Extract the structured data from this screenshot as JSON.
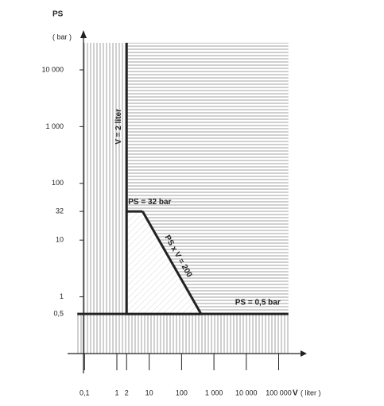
{
  "chart_data": {
    "type": "line",
    "y_label": "PS",
    "y_unit": "( bar )",
    "x_label": "V",
    "x_unit": "( liter )",
    "log_x": true,
    "log_y": true,
    "xlim": [
      0.03,
      400000
    ],
    "ylim": [
      0.1,
      40000
    ],
    "xticks": [
      {
        "value": 0.1,
        "label": "0,1"
      },
      1,
      2,
      10,
      100,
      {
        "value": 1000,
        "label": "1 000"
      },
      {
        "value": 10000,
        "label": "10 000"
      },
      {
        "value": 100000,
        "label": "100 000"
      }
    ],
    "yticks": [
      {
        "value": 0.5,
        "label": "0,5"
      },
      1,
      10,
      32,
      100,
      {
        "value": 1000,
        "label": "1 000"
      },
      {
        "value": 10000,
        "label": "10 000"
      }
    ],
    "series": [
      {
        "name": "V = 2 liter",
        "color": "#222222",
        "x": [
          2,
          2
        ],
        "values": [
          0.5,
          30000
        ]
      },
      {
        "name": "PS = 32 bar",
        "color": "#222222",
        "x": [
          2,
          6.25
        ],
        "values": [
          32,
          32
        ]
      },
      {
        "name": "PS x V = 200",
        "color": "#222222",
        "x": [
          6.25,
          400
        ],
        "values": [
          32,
          0.5
        ]
      },
      {
        "name": "PS = 0,5 bar",
        "color": "#222222",
        "x": [
          0.06,
          200000
        ],
        "values": [
          0.5,
          0.5
        ]
      }
    ]
  }
}
